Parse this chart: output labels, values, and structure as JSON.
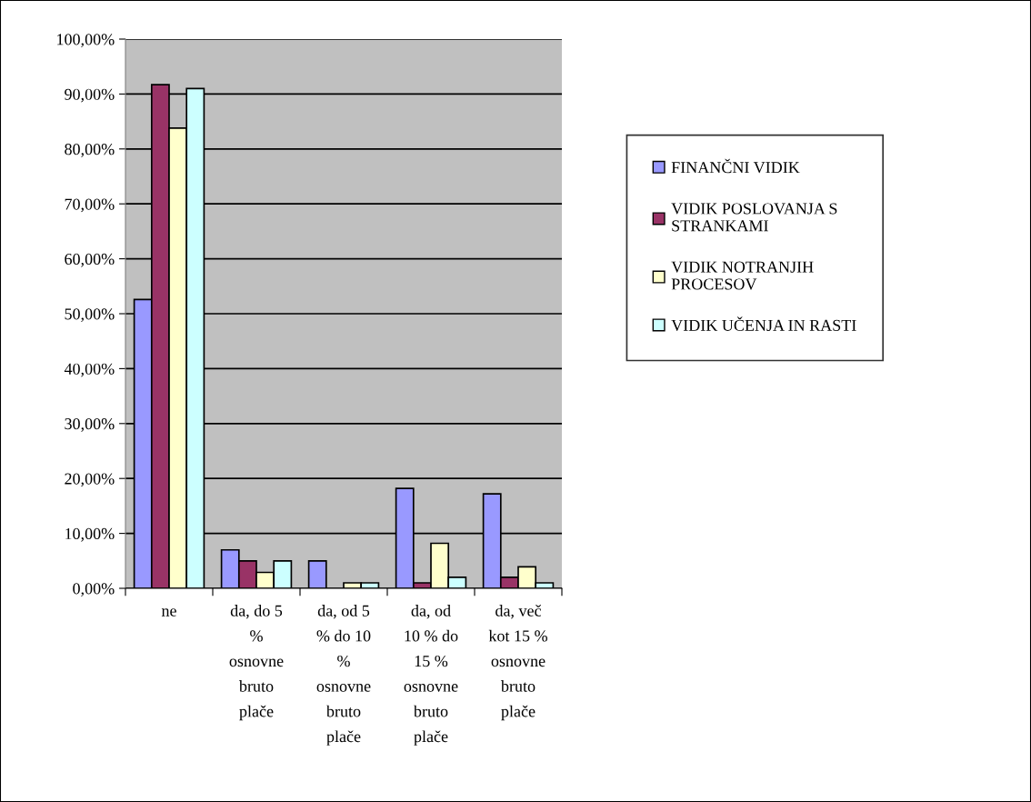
{
  "chart_data": {
    "type": "bar",
    "categories": [
      "ne",
      "da, do 5 % osnovne bruto plače",
      "da, od 5 % do 10 % osnovne bruto plače",
      "da, od 10 % do 15 % osnovne bruto plače",
      "da, več kot 15 % osnovne bruto plače"
    ],
    "series": [
      {
        "name": "FINANČNI VIDIK",
        "color": "#9999ff",
        "values": [
          52.6,
          7.0,
          5.0,
          18.2,
          17.2
        ]
      },
      {
        "name": "VIDIK POSLOVANJA S STRANKAMI",
        "color": "#993366",
        "values": [
          91.7,
          5.0,
          0,
          1.0,
          2.0
        ]
      },
      {
        "name": "VIDIK NOTRANJIH PROCESOV",
        "color": "#ffffcc",
        "values": [
          83.8,
          2.9,
          1.0,
          8.2,
          3.9
        ]
      },
      {
        "name": "VIDIK UČENJA IN RASTI",
        "color": "#ccffff",
        "values": [
          91.0,
          5.0,
          1.0,
          2.0,
          1.0
        ]
      }
    ],
    "ylim": [
      0,
      100
    ],
    "yticks": [
      {
        "value": 0,
        "label": "0,00%"
      },
      {
        "value": 10,
        "label": "10,00%"
      },
      {
        "value": 20,
        "label": "20,00%"
      },
      {
        "value": 30,
        "label": "30,00%"
      },
      {
        "value": 40,
        "label": "40,00%"
      },
      {
        "value": 50,
        "label": "50,00%"
      },
      {
        "value": 60,
        "label": "60,00%"
      },
      {
        "value": 70,
        "label": "70,00%"
      },
      {
        "value": 80,
        "label": "80,00%"
      },
      {
        "value": 90,
        "label": "90,00%"
      },
      {
        "value": 100,
        "label": "100,00%"
      }
    ],
    "grid": "y",
    "legend": "right"
  }
}
